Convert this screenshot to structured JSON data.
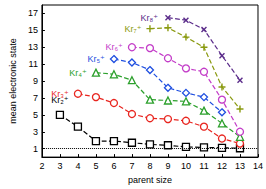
{
  "chart_data": {
    "type": "line",
    "x_label": "parent size",
    "y_label": "mean electronic state",
    "xlim": [
      2,
      14
    ],
    "xticks": [
      2,
      3,
      4,
      5,
      6,
      7,
      8,
      9,
      10,
      11,
      12,
      13,
      14
    ],
    "ylim": [
      0,
      18
    ],
    "yticks": [
      1,
      3,
      5,
      7,
      9,
      11,
      13,
      15,
      17
    ],
    "grid": false,
    "line_style": "dashed",
    "baseline": 1,
    "series": [
      {
        "name": "Kr₂⁺",
        "color": "#000000",
        "marker": "square",
        "x": [
          3,
          4,
          5,
          6,
          7,
          8,
          9,
          10,
          11,
          12,
          13
        ],
        "values": [
          5.0,
          3.6,
          1.9,
          1.9,
          1.7,
          1.5,
          1.4,
          1.2,
          1.15,
          1.1,
          1.05
        ]
      },
      {
        "name": "Kr₃⁺",
        "color": "#e8251f",
        "marker": "circle",
        "x": [
          4,
          5,
          6,
          7,
          8,
          9,
          10,
          11,
          12,
          13
        ],
        "values": [
          7.5,
          7.1,
          6.4,
          5.1,
          4.6,
          4.5,
          4.3,
          3.6,
          2.2,
          1.6
        ]
      },
      {
        "name": "Kr₄⁺",
        "color": "#2ca02c",
        "marker": "triangle",
        "x": [
          5,
          6,
          7,
          8,
          9,
          10,
          11,
          12,
          13
        ],
        "values": [
          10.0,
          9.8,
          9.1,
          6.8,
          6.7,
          6.6,
          5.5,
          4.0,
          2.4
        ]
      },
      {
        "name": "Kr₅⁺",
        "color": "#1f4fe0",
        "marker": "diamond",
        "x": [
          6,
          7,
          8,
          9,
          10,
          11,
          12
        ],
        "values": [
          11.6,
          11.2,
          10.3,
          8.2,
          7.6,
          7.1,
          5.3
        ]
      },
      {
        "name": "Kr₆⁺",
        "color": "#c33cc8",
        "marker": "circle",
        "x": [
          7,
          8,
          9,
          10,
          11,
          12,
          13
        ],
        "values": [
          13.0,
          12.9,
          11.7,
          10.5,
          10.1,
          6.8,
          3.0
        ]
      },
      {
        "name": "Kr₇⁺",
        "color": "#8a9a10",
        "marker": "plus",
        "x": [
          8,
          9,
          10,
          11,
          12,
          13
        ],
        "values": [
          15.2,
          15.3,
          14.2,
          13.0,
          8.3,
          5.7
        ]
      },
      {
        "name": "Kr₈⁺",
        "color": "#5b2c8a",
        "marker": "x",
        "x": [
          9,
          10,
          11,
          12,
          13
        ],
        "values": [
          16.5,
          16.2,
          15.1,
          12.0,
          9.1
        ]
      }
    ]
  }
}
